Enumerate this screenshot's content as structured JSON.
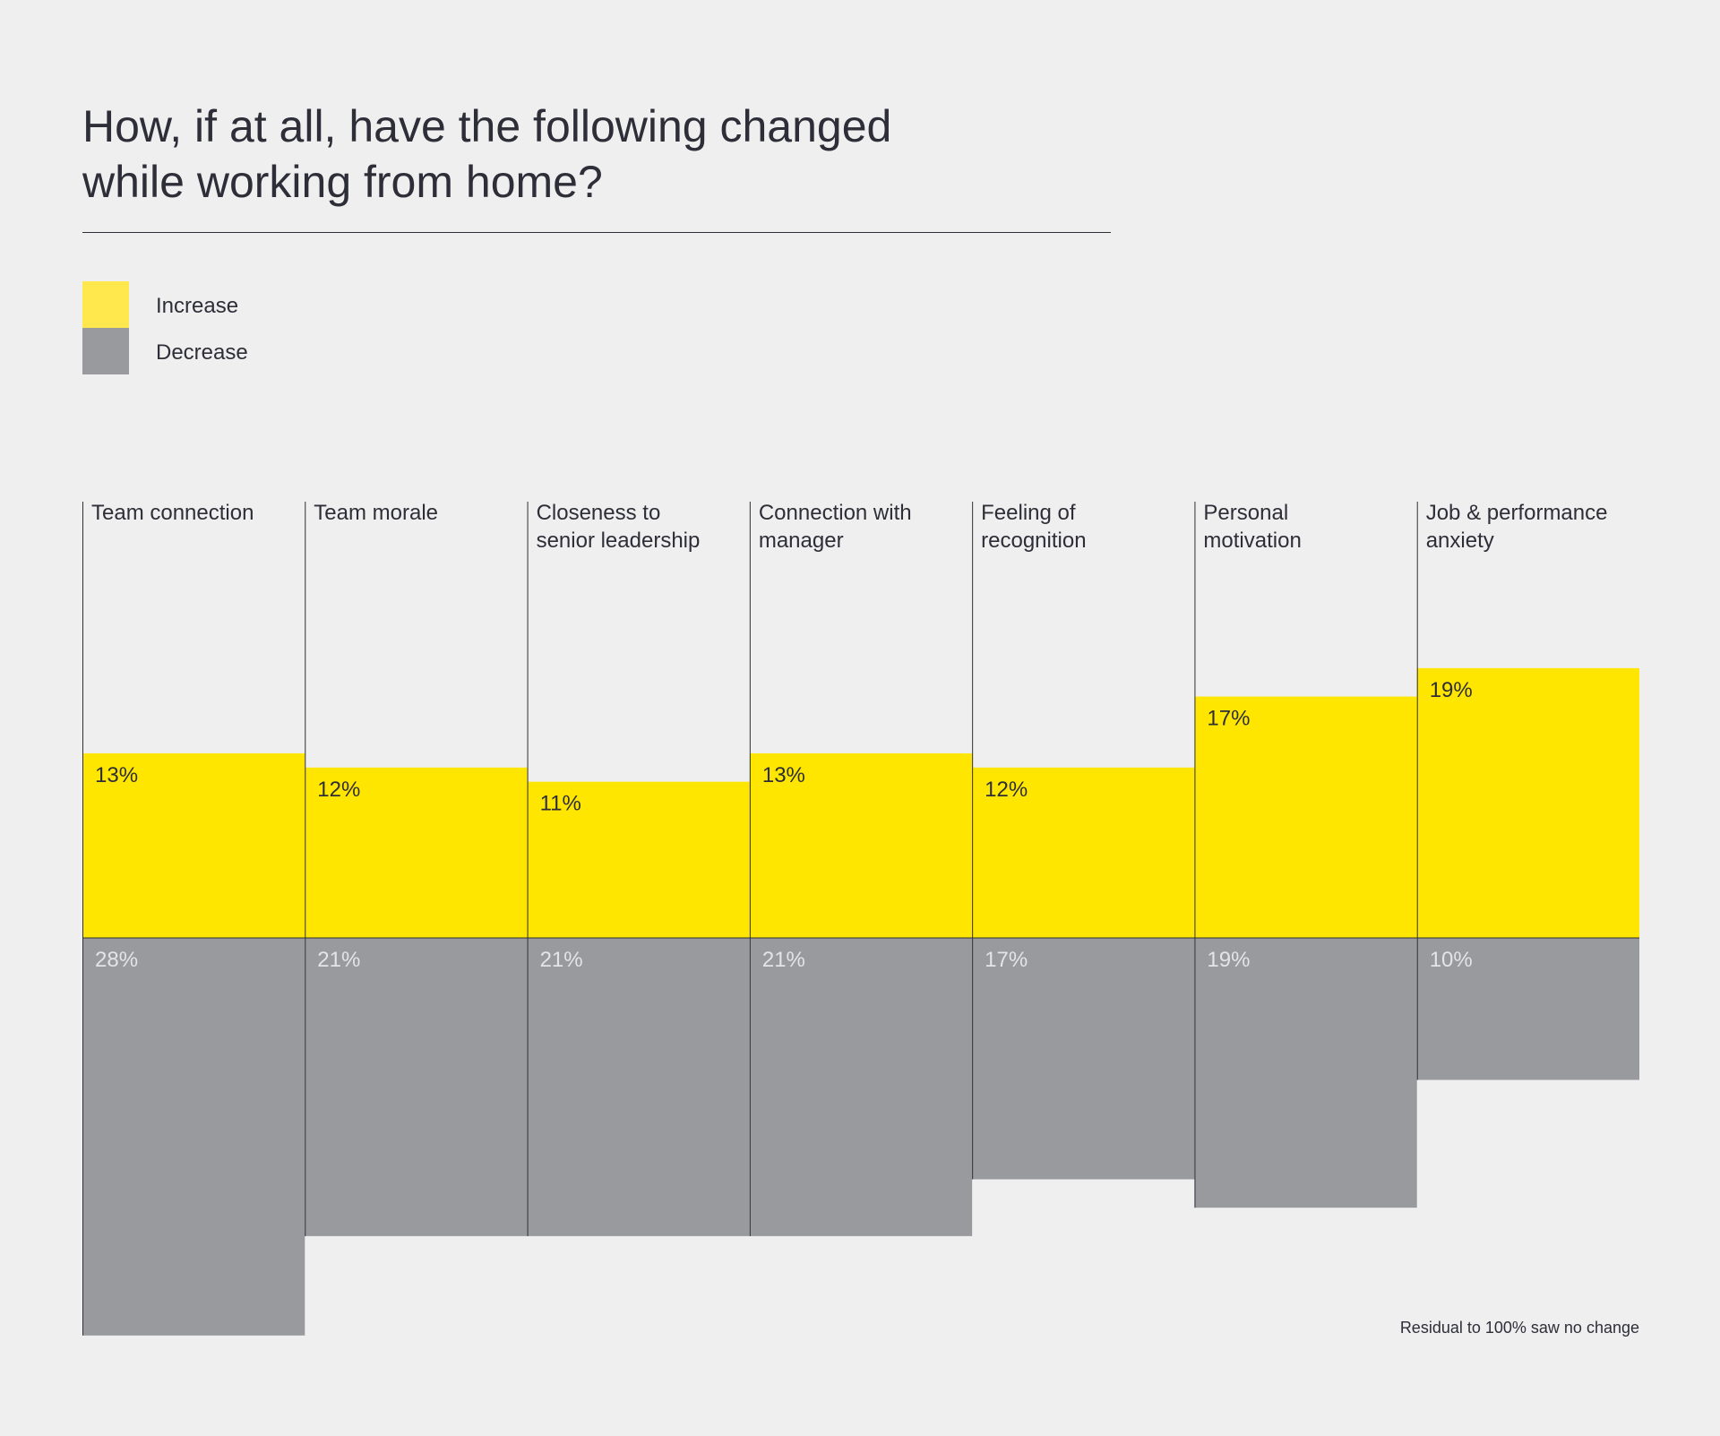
{
  "title_lines": [
    "How, if at all, have the following changed",
    "while working from home?"
  ],
  "legend": [
    {
      "label": "Increase",
      "color": "#ffe600"
    },
    {
      "label": "Decrease",
      "color": "#999a9e"
    }
  ],
  "footnote": "Residual to 100% saw no change",
  "colors": {
    "background": "#efefef",
    "increase": "#ffe600",
    "decrease": "#999a9e",
    "text": "#2e2e38"
  },
  "chart_data": {
    "type": "bar",
    "categories": [
      [
        "Team connection"
      ],
      [
        "Team morale"
      ],
      [
        "Closeness to",
        "senior leadership"
      ],
      [
        "Connection with",
        "manager"
      ],
      [
        "Feeling of",
        "recognition"
      ],
      [
        "Personal",
        "motivation"
      ],
      [
        "Job & performance",
        "anxiety"
      ]
    ],
    "series": [
      {
        "name": "Increase",
        "values": [
          13,
          12,
          11,
          13,
          12,
          17,
          19
        ],
        "labels": [
          "13%",
          "12%",
          "11%",
          "13%",
          "12%",
          "17%",
          "19%"
        ]
      },
      {
        "name": "Decrease",
        "values": [
          28,
          21,
          21,
          21,
          17,
          19,
          10
        ],
        "labels": [
          "28%",
          "21%",
          "21%",
          "21%",
          "17%",
          "19%",
          "10%"
        ]
      }
    ],
    "increase_axis": "up",
    "decrease_axis": "down",
    "grid": false,
    "legend_position": "top-left"
  }
}
